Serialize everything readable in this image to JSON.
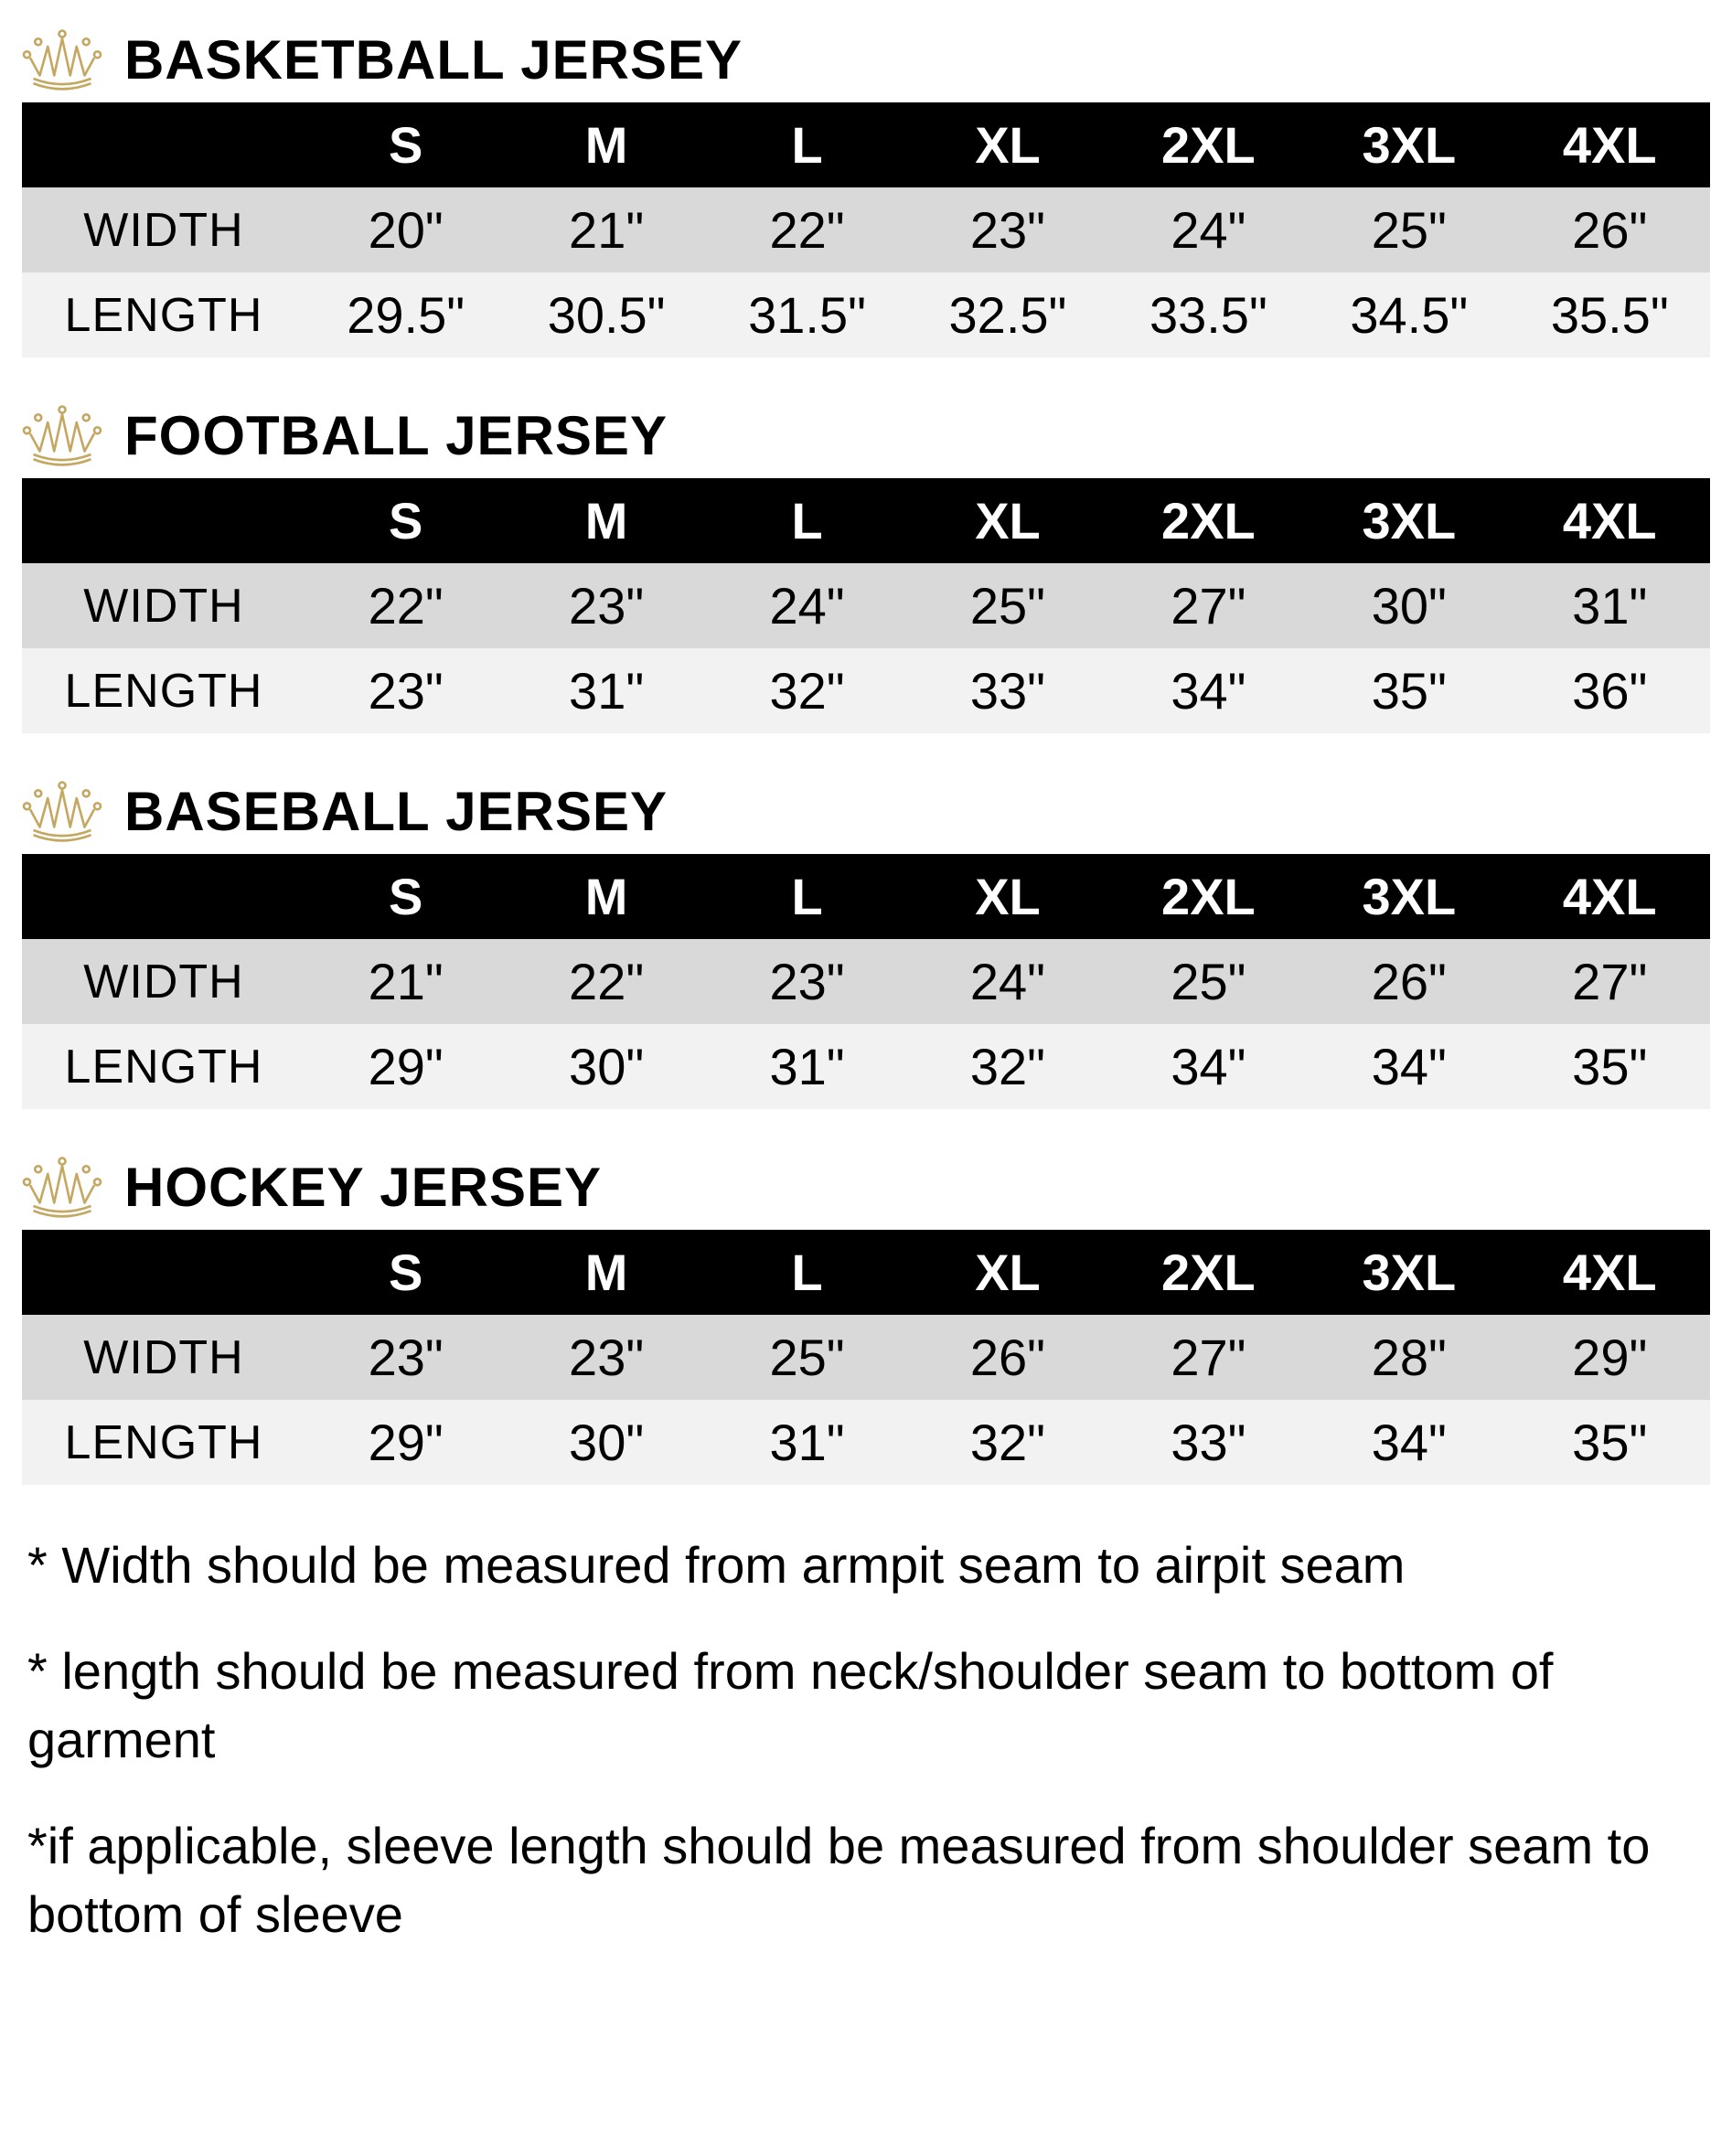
{
  "icon_color": "#c4a862",
  "tables": [
    {
      "title": "BASKETBALL JERSEY",
      "sizes": [
        "S",
        "M",
        "L",
        "XL",
        "2XL",
        "3XL",
        "4XL"
      ],
      "rows": [
        {
          "label": "WIDTH",
          "values": [
            "20\"",
            "21\"",
            "22\"",
            "23\"",
            "24\"",
            "25\"",
            "26\""
          ]
        },
        {
          "label": "LENGTH",
          "values": [
            "29.5\"",
            "30.5\"",
            "31.5\"",
            "32.5\"",
            "33.5\"",
            "34.5\"",
            "35.5\""
          ]
        }
      ]
    },
    {
      "title": "FOOTBALL JERSEY",
      "sizes": [
        "S",
        "M",
        "L",
        "XL",
        "2XL",
        "3XL",
        "4XL"
      ],
      "rows": [
        {
          "label": "WIDTH",
          "values": [
            "22\"",
            "23\"",
            "24\"",
            "25\"",
            "27\"",
            "30\"",
            "31\""
          ]
        },
        {
          "label": "LENGTH",
          "values": [
            "23\"",
            "31\"",
            "32\"",
            "33\"",
            "34\"",
            "35\"",
            "36\""
          ]
        }
      ]
    },
    {
      "title": "BASEBALL JERSEY",
      "sizes": [
        "S",
        "M",
        "L",
        "XL",
        "2XL",
        "3XL",
        "4XL"
      ],
      "rows": [
        {
          "label": "WIDTH",
          "values": [
            "21\"",
            "22\"",
            "23\"",
            "24\"",
            "25\"",
            "26\"",
            "27\""
          ]
        },
        {
          "label": "LENGTH",
          "values": [
            "29\"",
            "30\"",
            "31\"",
            "32\"",
            "34\"",
            "34\"",
            "35\""
          ]
        }
      ]
    },
    {
      "title": "HOCKEY JERSEY",
      "sizes": [
        "S",
        "M",
        "L",
        "XL",
        "2XL",
        "3XL",
        "4XL"
      ],
      "rows": [
        {
          "label": "WIDTH",
          "values": [
            "23\"",
            "23\"",
            "25\"",
            "26\"",
            "27\"",
            "28\"",
            "29\""
          ]
        },
        {
          "label": "LENGTH",
          "values": [
            "29\"",
            "30\"",
            "31\"",
            "32\"",
            "33\"",
            "34\"",
            "35\""
          ]
        }
      ]
    }
  ],
  "notes": [
    "* Width should be measured from armpit seam to airpit seam",
    "* length should be measured from neck/shoulder seam to bottom of garment",
    "*if applicable, sleeve length should be measured from shoulder seam to bottom of sleeve"
  ],
  "colors": {
    "header_bg": "#000000",
    "header_fg": "#ffffff",
    "row_even_bg": "#d9d9d9",
    "row_odd_bg": "#f2f2f2",
    "text": "#000000"
  }
}
